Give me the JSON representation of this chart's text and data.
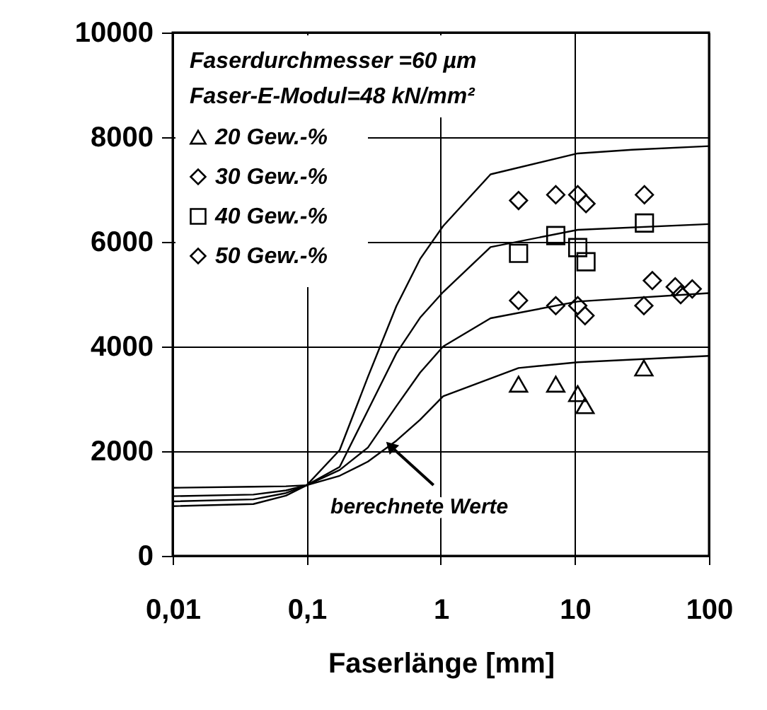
{
  "chart_data": {
    "type": "scatter",
    "xlabel": "Faserlänge [mm]",
    "xlim": [
      0.01,
      100
    ],
    "ylim": [
      0,
      10000
    ],
    "log": "x",
    "grid": true,
    "legend": "top left",
    "xticks": [
      {
        "value": 0.01,
        "label": "0,01"
      },
      {
        "value": 0.1,
        "label": "0,1"
      },
      1,
      10,
      100
    ],
    "yticks": [
      0,
      2000,
      4000,
      6000,
      8000,
      10000
    ],
    "annotations": [
      "Faserdurchmesser =60 µm",
      "Faser-E-Modul=48 kN/mm²",
      {
        "text": "berechnete Werte",
        "x": 0.42,
        "y": 2100
      }
    ],
    "series": [
      {
        "name": "20 Gew.-%",
        "type": "scatter",
        "marker": "triangle",
        "color": "#000000",
        "x": [
          3.8,
          7.2,
          10.5,
          11.9,
          32.7
        ],
        "values": [
          3280,
          3280,
          3100,
          2870,
          3590
        ]
      },
      {
        "name": "30 Gew.-%",
        "type": "scatter",
        "marker": "diamond",
        "color": "#000000",
        "x": [
          3.8,
          7.2,
          10.5,
          11.9,
          32.7,
          37.8,
          56,
          61.5,
          75
        ],
        "values": [
          4880,
          4780,
          4780,
          4590,
          4780,
          5260,
          5140,
          4990,
          5100
        ]
      },
      {
        "name": "40 Gew.-%",
        "type": "scatter",
        "marker": "square",
        "color": "#000000",
        "x": [
          3.8,
          7.2,
          10.5,
          12.1,
          33
        ],
        "values": [
          5780,
          6120,
          5890,
          5620,
          6360
        ]
      },
      {
        "name": "50 Gew.-%",
        "type": "scatter",
        "marker": "diamond",
        "color": "#000000",
        "x": [
          3.8,
          7.2,
          10.5,
          12.1,
          33
        ],
        "values": [
          6790,
          6900,
          6900,
          6730,
          6900
        ]
      },
      {
        "type": "line",
        "marker": "none",
        "color": "#000000",
        "x": [
          0.01,
          0.04,
          0.07,
          0.1,
          0.176,
          0.286,
          0.466,
          0.7,
          1.04,
          2.35,
          10.5,
          26.7,
          100
        ],
        "values": [
          950,
          990,
          1150,
          1350,
          2020,
          3420,
          4770,
          5670,
          6300,
          7290,
          7690,
          7760,
          7830
        ]
      },
      {
        "type": "line",
        "marker": "none",
        "color": "#000000",
        "x": [
          0.01,
          0.04,
          0.07,
          0.1,
          0.176,
          0.286,
          0.466,
          0.7,
          1.04,
          2.35,
          10.5,
          100
        ],
        "values": [
          1040,
          1080,
          1200,
          1350,
          1700,
          2780,
          3870,
          4550,
          5040,
          5900,
          6230,
          6340
        ]
      },
      {
        "type": "line",
        "marker": "none",
        "color": "#000000",
        "x": [
          0.01,
          0.04,
          0.07,
          0.1,
          0.176,
          0.286,
          0.466,
          0.7,
          1.04,
          2.35,
          10.5,
          100
        ],
        "values": [
          1140,
          1170,
          1250,
          1350,
          1640,
          2070,
          2860,
          3500,
          4000,
          4540,
          4860,
          5020
        ]
      },
      {
        "type": "line",
        "marker": "none",
        "color": "#000000",
        "x": [
          0.01,
          0.04,
          0.07,
          0.1,
          0.176,
          0.286,
          0.466,
          0.7,
          1.04,
          3.8,
          10.5,
          100
        ],
        "values": [
          1300,
          1320,
          1330,
          1350,
          1530,
          1800,
          2200,
          2600,
          3050,
          3590,
          3700,
          3820
        ]
      }
    ]
  }
}
